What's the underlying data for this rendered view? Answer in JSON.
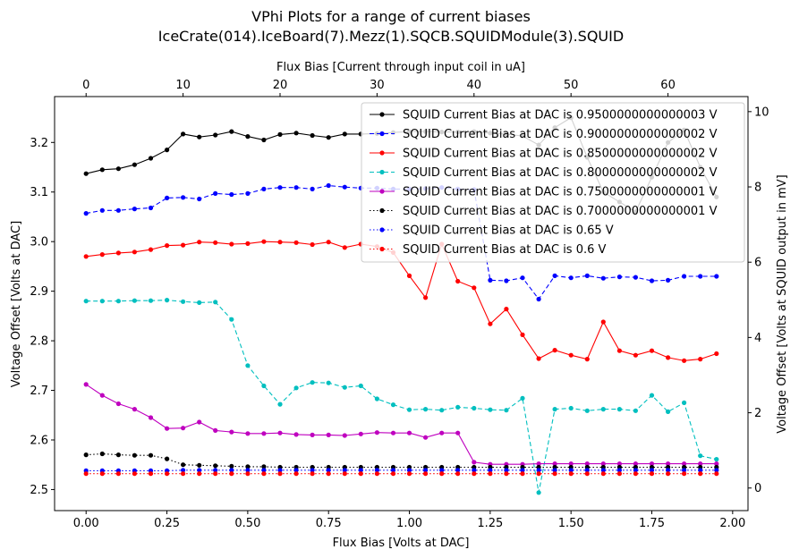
{
  "chart_data": {
    "type": "line",
    "title": "VPhi Plots for a range of current biases",
    "subtitle": "IceCrate(014).IceBoard(7).Mezz(1).SQCB.SQUIDModule(3).SQUID",
    "xlabel": "Flux Bias [Volts at DAC]",
    "ylabel": "Voltage Offset [Volts at DAC]",
    "x2label": "Flux Bias [Current through input coil in uA]",
    "y2label": "Voltage Offset [Volts at SQUID output in mV]",
    "xlim": [
      -0.0975,
      2.0475
    ],
    "ylim": [
      2.4575,
      3.2925
    ],
    "x2lim": [
      -3.25,
      68.25
    ],
    "y2lim": [
      -0.6,
      10.4
    ],
    "xticks": [
      "0.00",
      "0.25",
      "0.50",
      "0.75",
      "1.00",
      "1.25",
      "1.50",
      "1.75",
      "2.00"
    ],
    "yticks": [
      "2.5",
      "2.6",
      "2.7",
      "2.8",
      "2.9",
      "3.0",
      "3.1",
      "3.2"
    ],
    "x2ticks": [
      "0",
      "10",
      "20",
      "30",
      "40",
      "50",
      "60"
    ],
    "y2ticks": [
      "0",
      "2",
      "4",
      "6",
      "8",
      "10"
    ],
    "legend_position": "top-right",
    "grid": false,
    "x": [
      0,
      0.05,
      0.1,
      0.15,
      0.2,
      0.25,
      0.3,
      0.35,
      0.4,
      0.45,
      0.5,
      0.55,
      0.6,
      0.65,
      0.7,
      0.75,
      0.8,
      0.85,
      0.9,
      0.95,
      1.0,
      1.05,
      1.1,
      1.15,
      1.2,
      1.25,
      1.3,
      1.35,
      1.4,
      1.45,
      1.5,
      1.55,
      1.6,
      1.65,
      1.7,
      1.75,
      1.8,
      1.85,
      1.9,
      1.95
    ],
    "series": [
      {
        "name": "SQUID Current Bias at DAC is 0.9500000000000003 V",
        "color": "#000000",
        "dash": "solid",
        "values": [
          3.137,
          3.145,
          3.147,
          3.155,
          3.168,
          3.185,
          3.217,
          3.211,
          3.215,
          3.222,
          3.212,
          3.205,
          3.216,
          3.219,
          3.214,
          3.21,
          3.217,
          3.217,
          3.218,
          3.22,
          3.222,
          3.222,
          3.221,
          3.221,
          3.222,
          3.219,
          3.217,
          3.213,
          3.195,
          3.23,
          3.25,
          3.17,
          3.1,
          3.08,
          3.06,
          3.13,
          3.2,
          3.225,
          3.15,
          3.09
        ]
      },
      {
        "name": "SQUID Current Bias at DAC is 0.9000000000000002 V",
        "color": "#0000ff",
        "dash": "dashed",
        "values": [
          3.057,
          3.063,
          3.063,
          3.066,
          3.068,
          3.088,
          3.089,
          3.086,
          3.097,
          3.095,
          3.097,
          3.106,
          3.109,
          3.109,
          3.106,
          3.113,
          3.11,
          3.108,
          3.108,
          3.106,
          3.106,
          3.107,
          3.109,
          3.106,
          3.105,
          2.922,
          2.921,
          2.927,
          2.884,
          2.931,
          2.927,
          2.931,
          2.926,
          2.929,
          2.928,
          2.921,
          2.922,
          2.93,
          2.93,
          2.93
        ]
      },
      {
        "name": "SQUID Current Bias at DAC is 0.8500000000000002 V",
        "color": "#ff0000",
        "dash": "solid",
        "values": [
          2.97,
          2.974,
          2.977,
          2.979,
          2.984,
          2.992,
          2.993,
          2.999,
          2.998,
          2.995,
          2.996,
          3.0,
          2.999,
          2.998,
          2.994,
          2.999,
          2.988,
          2.995,
          2.99,
          2.978,
          2.931,
          2.887,
          2.995,
          2.92,
          2.907,
          2.834,
          2.864,
          2.812,
          2.764,
          2.781,
          2.771,
          2.763,
          2.838,
          2.78,
          2.771,
          2.78,
          2.766,
          2.76,
          2.763,
          2.774
        ]
      },
      {
        "name": "SQUID Current Bias at DAC is 0.8000000000000002 V",
        "color": "#00bfbf",
        "dash": "dashed",
        "values": [
          2.88,
          2.88,
          2.88,
          2.881,
          2.881,
          2.882,
          2.879,
          2.877,
          2.878,
          2.843,
          2.75,
          2.709,
          2.672,
          2.705,
          2.716,
          2.715,
          2.706,
          2.709,
          2.683,
          2.671,
          2.661,
          2.662,
          2.66,
          2.666,
          2.664,
          2.661,
          2.66,
          2.684,
          2.494,
          2.662,
          2.664,
          2.659,
          2.662,
          2.662,
          2.659,
          2.69,
          2.657,
          2.675,
          2.568,
          2.561
        ]
      },
      {
        "name": "SQUID Current Bias at DAC is 0.7500000000000001 V",
        "color": "#bf00bf",
        "dash": "solid",
        "values": [
          2.712,
          2.69,
          2.673,
          2.662,
          2.645,
          2.623,
          2.624,
          2.636,
          2.619,
          2.616,
          2.613,
          2.613,
          2.614,
          2.611,
          2.61,
          2.61,
          2.609,
          2.612,
          2.615,
          2.614,
          2.614,
          2.605,
          2.614,
          2.614,
          2.555,
          2.551,
          2.551,
          2.551,
          2.552,
          2.552,
          2.552,
          2.552,
          2.552,
          2.552,
          2.552,
          2.552,
          2.552,
          2.552,
          2.552,
          2.552
        ]
      },
      {
        "name": "SQUID Current Bias at DAC is 0.7000000000000001 V",
        "color": "#000000",
        "dash": "dotted",
        "values": [
          2.57,
          2.572,
          2.57,
          2.569,
          2.569,
          2.562,
          2.55,
          2.549,
          2.548,
          2.547,
          2.546,
          2.546,
          2.545,
          2.545,
          2.545,
          2.545,
          2.545,
          2.545,
          2.545,
          2.545,
          2.545,
          2.545,
          2.545,
          2.545,
          2.545,
          2.545,
          2.545,
          2.545,
          2.545,
          2.545,
          2.545,
          2.545,
          2.545,
          2.545,
          2.545,
          2.545,
          2.545,
          2.545,
          2.545,
          2.545
        ]
      },
      {
        "name": "SQUID Current Bias at DAC is 0.65 V",
        "color": "#0000ff",
        "dash": "dotted",
        "values": [
          2.538,
          2.538,
          2.538,
          2.538,
          2.538,
          2.538,
          2.539,
          2.539,
          2.539,
          2.539,
          2.539,
          2.539,
          2.539,
          2.539,
          2.539,
          2.539,
          2.539,
          2.539,
          2.539,
          2.539,
          2.539,
          2.539,
          2.539,
          2.539,
          2.539,
          2.539,
          2.539,
          2.539,
          2.539,
          2.539,
          2.539,
          2.539,
          2.539,
          2.539,
          2.539,
          2.539,
          2.539,
          2.539,
          2.539,
          2.539
        ]
      },
      {
        "name": "SQUID Current Bias at DAC is 0.6 V",
        "color": "#ff0000",
        "dash": "dotted",
        "values": [
          2.532,
          2.532,
          2.532,
          2.532,
          2.532,
          2.532,
          2.532,
          2.532,
          2.532,
          2.532,
          2.532,
          2.532,
          2.532,
          2.532,
          2.532,
          2.532,
          2.532,
          2.532,
          2.532,
          2.532,
          2.532,
          2.532,
          2.532,
          2.532,
          2.532,
          2.532,
          2.532,
          2.532,
          2.532,
          2.532,
          2.532,
          2.532,
          2.532,
          2.532,
          2.532,
          2.532,
          2.532,
          2.532,
          2.532,
          2.532
        ]
      }
    ]
  }
}
